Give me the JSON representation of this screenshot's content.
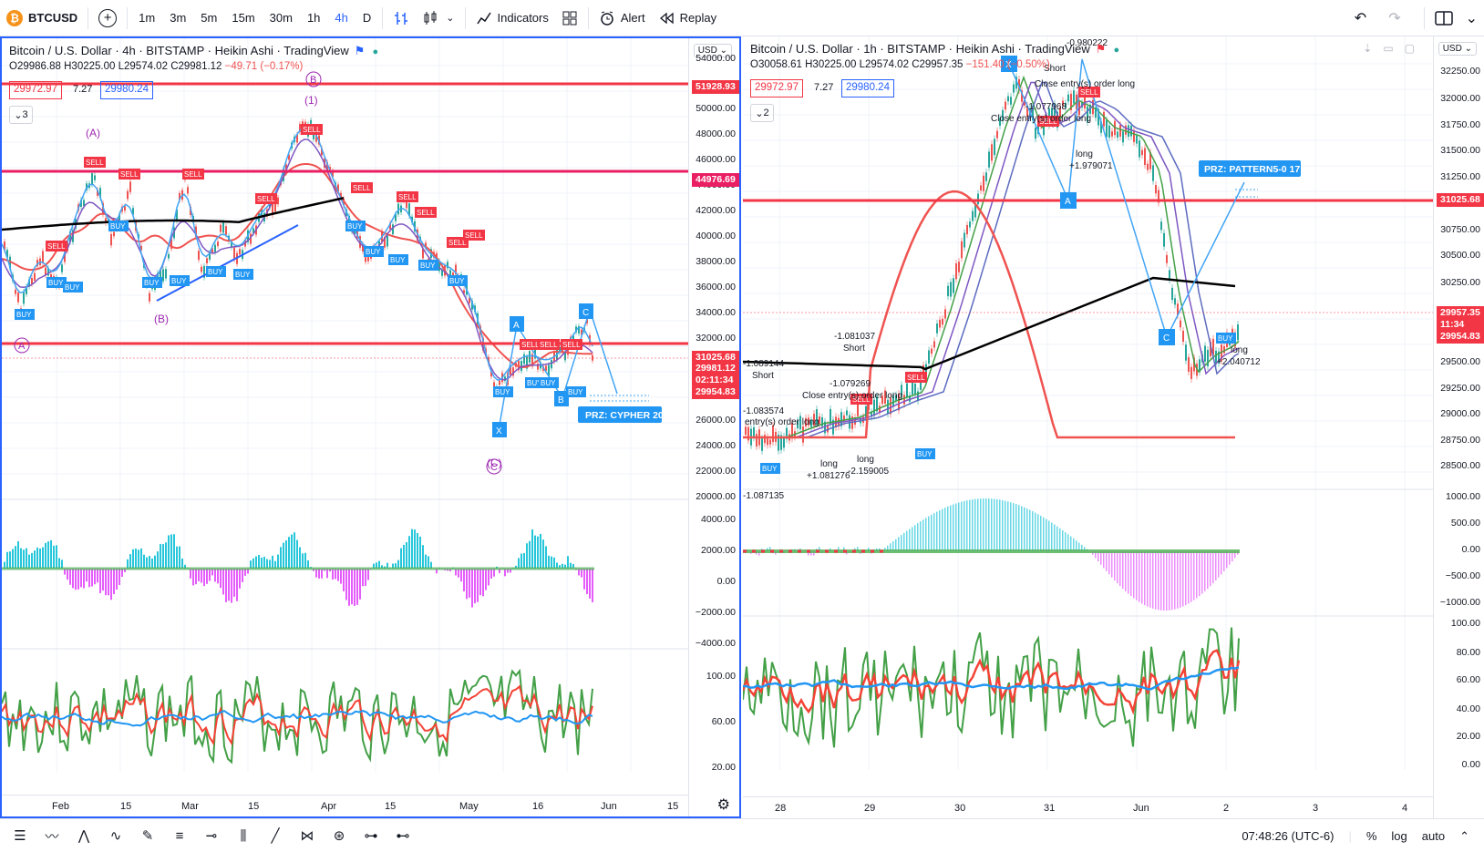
{
  "toolbar": {
    "symbol": "BTCUSD",
    "intervals": [
      "1m",
      "3m",
      "5m",
      "15m",
      "30m",
      "1h",
      "4h",
      "D"
    ],
    "active_interval": "4h",
    "indicators_label": "Indicators",
    "alert_label": "Alert",
    "replay_label": "Replay"
  },
  "left_chart": {
    "title": "Bitcoin / U.S. Dollar · 4h · BITSTAMP · Heikin Ashi · TradingView",
    "ohlc": {
      "o": "O29986.88",
      "h": "H30225.00",
      "l": "L29574.02",
      "c": "C29981.12",
      "chg": "−49.71 (−0.17%)"
    },
    "bid": "29972.97",
    "spread": "7.27",
    "ask": "29980.24",
    "collapse_count": "3",
    "currency": "USD",
    "price_ticks": [
      "54000.00",
      "50000.00",
      "48000.00",
      "46000.00",
      "44000.00",
      "42000.00",
      "40000.00",
      "38000.00",
      "36000.00",
      "34000.00",
      "32000.00",
      "30000.00",
      "26000.00",
      "24000.00",
      "22000.00",
      "20000.00"
    ],
    "scale_tags": [
      {
        "text": "51928.93",
        "color": "#f23645"
      },
      {
        "text": "44976.69",
        "color": "#e91e63"
      },
      {
        "text": "31025.68",
        "color": "#f23645"
      },
      {
        "text": "29981.12",
        "color": "#f23645"
      },
      {
        "text": "02:11:34",
        "color": "#f23645"
      },
      {
        "text": "29954.83",
        "color": "#f23645"
      }
    ],
    "osc_ticks": [
      "4000.00",
      "2000.00",
      "0.00",
      "−2000.00",
      "−4000.00"
    ],
    "rsi_ticks": [
      "100.00",
      "60.00",
      "20.00"
    ],
    "time_ticks": [
      "Feb",
      "15",
      "Mar",
      "15",
      "Apr",
      "15",
      "May",
      "16",
      "Jun",
      "15"
    ],
    "prz_label": "PRZ: CYPHER 20",
    "wave_labels": [
      "(A)",
      "(B)",
      "B",
      "(1)",
      "(C)",
      "C"
    ]
  },
  "right_chart": {
    "title": "Bitcoin / U.S. Dollar · 1h · BITSTAMP · Heikin Ashi · TradingView",
    "ohlc": {
      "o": "O30058.61",
      "h": "H30225.00",
      "l": "L29574.02",
      "c": "C29957.35",
      "chg": "−151.40 (−0.50%)"
    },
    "bid": "29972.97",
    "spread": "7.27",
    "ask": "29980.24",
    "collapse_count": "2",
    "currency": "USD",
    "price_ticks": [
      "32250.00",
      "32000.00",
      "31750.00",
      "31500.00",
      "31250.00",
      "30750.00",
      "30500.00",
      "30250.00",
      "29500.00",
      "29250.00",
      "29000.00",
      "28750.00",
      "28500.00"
    ],
    "scale_tags": [
      {
        "text": "31025.68",
        "color": "#f23645"
      },
      {
        "text": "29957.35",
        "color": "#f23645"
      },
      {
        "text": "11:34",
        "color": "#f23645"
      },
      {
        "text": "29954.83",
        "color": "#f23645"
      }
    ],
    "osc_ticks": [
      "1000.00",
      "500.00",
      "0.00",
      "−500.00",
      "−1000.00"
    ],
    "rsi_ticks": [
      "100.00",
      "80.00",
      "60.00",
      "40.00",
      "20.00",
      "0.00"
    ],
    "time_ticks": [
      "28",
      "29",
      "30",
      "31",
      "Jun",
      "2",
      "3",
      "4"
    ],
    "prz_label": "PRZ: PATTERN5-0 17",
    "annotations": [
      {
        "text": "-1.081037"
      },
      {
        "text": "Short"
      },
      {
        "text": "-1.089144"
      },
      {
        "text": "Short"
      },
      {
        "text": "-1.079269"
      },
      {
        "text": "Close entry(s) order long"
      },
      {
        "text": "-1.083574"
      },
      {
        "text": "entry(s) order long"
      },
      {
        "text": "long"
      },
      {
        "text": "+1.081276"
      },
      {
        "text": "long"
      },
      {
        "text": "-2.159005"
      },
      {
        "text": "-1.087135"
      },
      {
        "text": "-1.077968"
      },
      {
        "text": "Close entry(s) order long"
      },
      {
        "text": "-0.980222"
      },
      {
        "text": "Short"
      },
      {
        "text": "Close entry(s) order long"
      },
      {
        "text": "long"
      },
      {
        "text": "+1.979071"
      },
      {
        "text": "long"
      },
      {
        "text": "+2.040712"
      }
    ]
  },
  "bottom": {
    "clock": "07:48:26 (UTC-6)",
    "percent": "%",
    "log": "log",
    "auto": "auto"
  }
}
